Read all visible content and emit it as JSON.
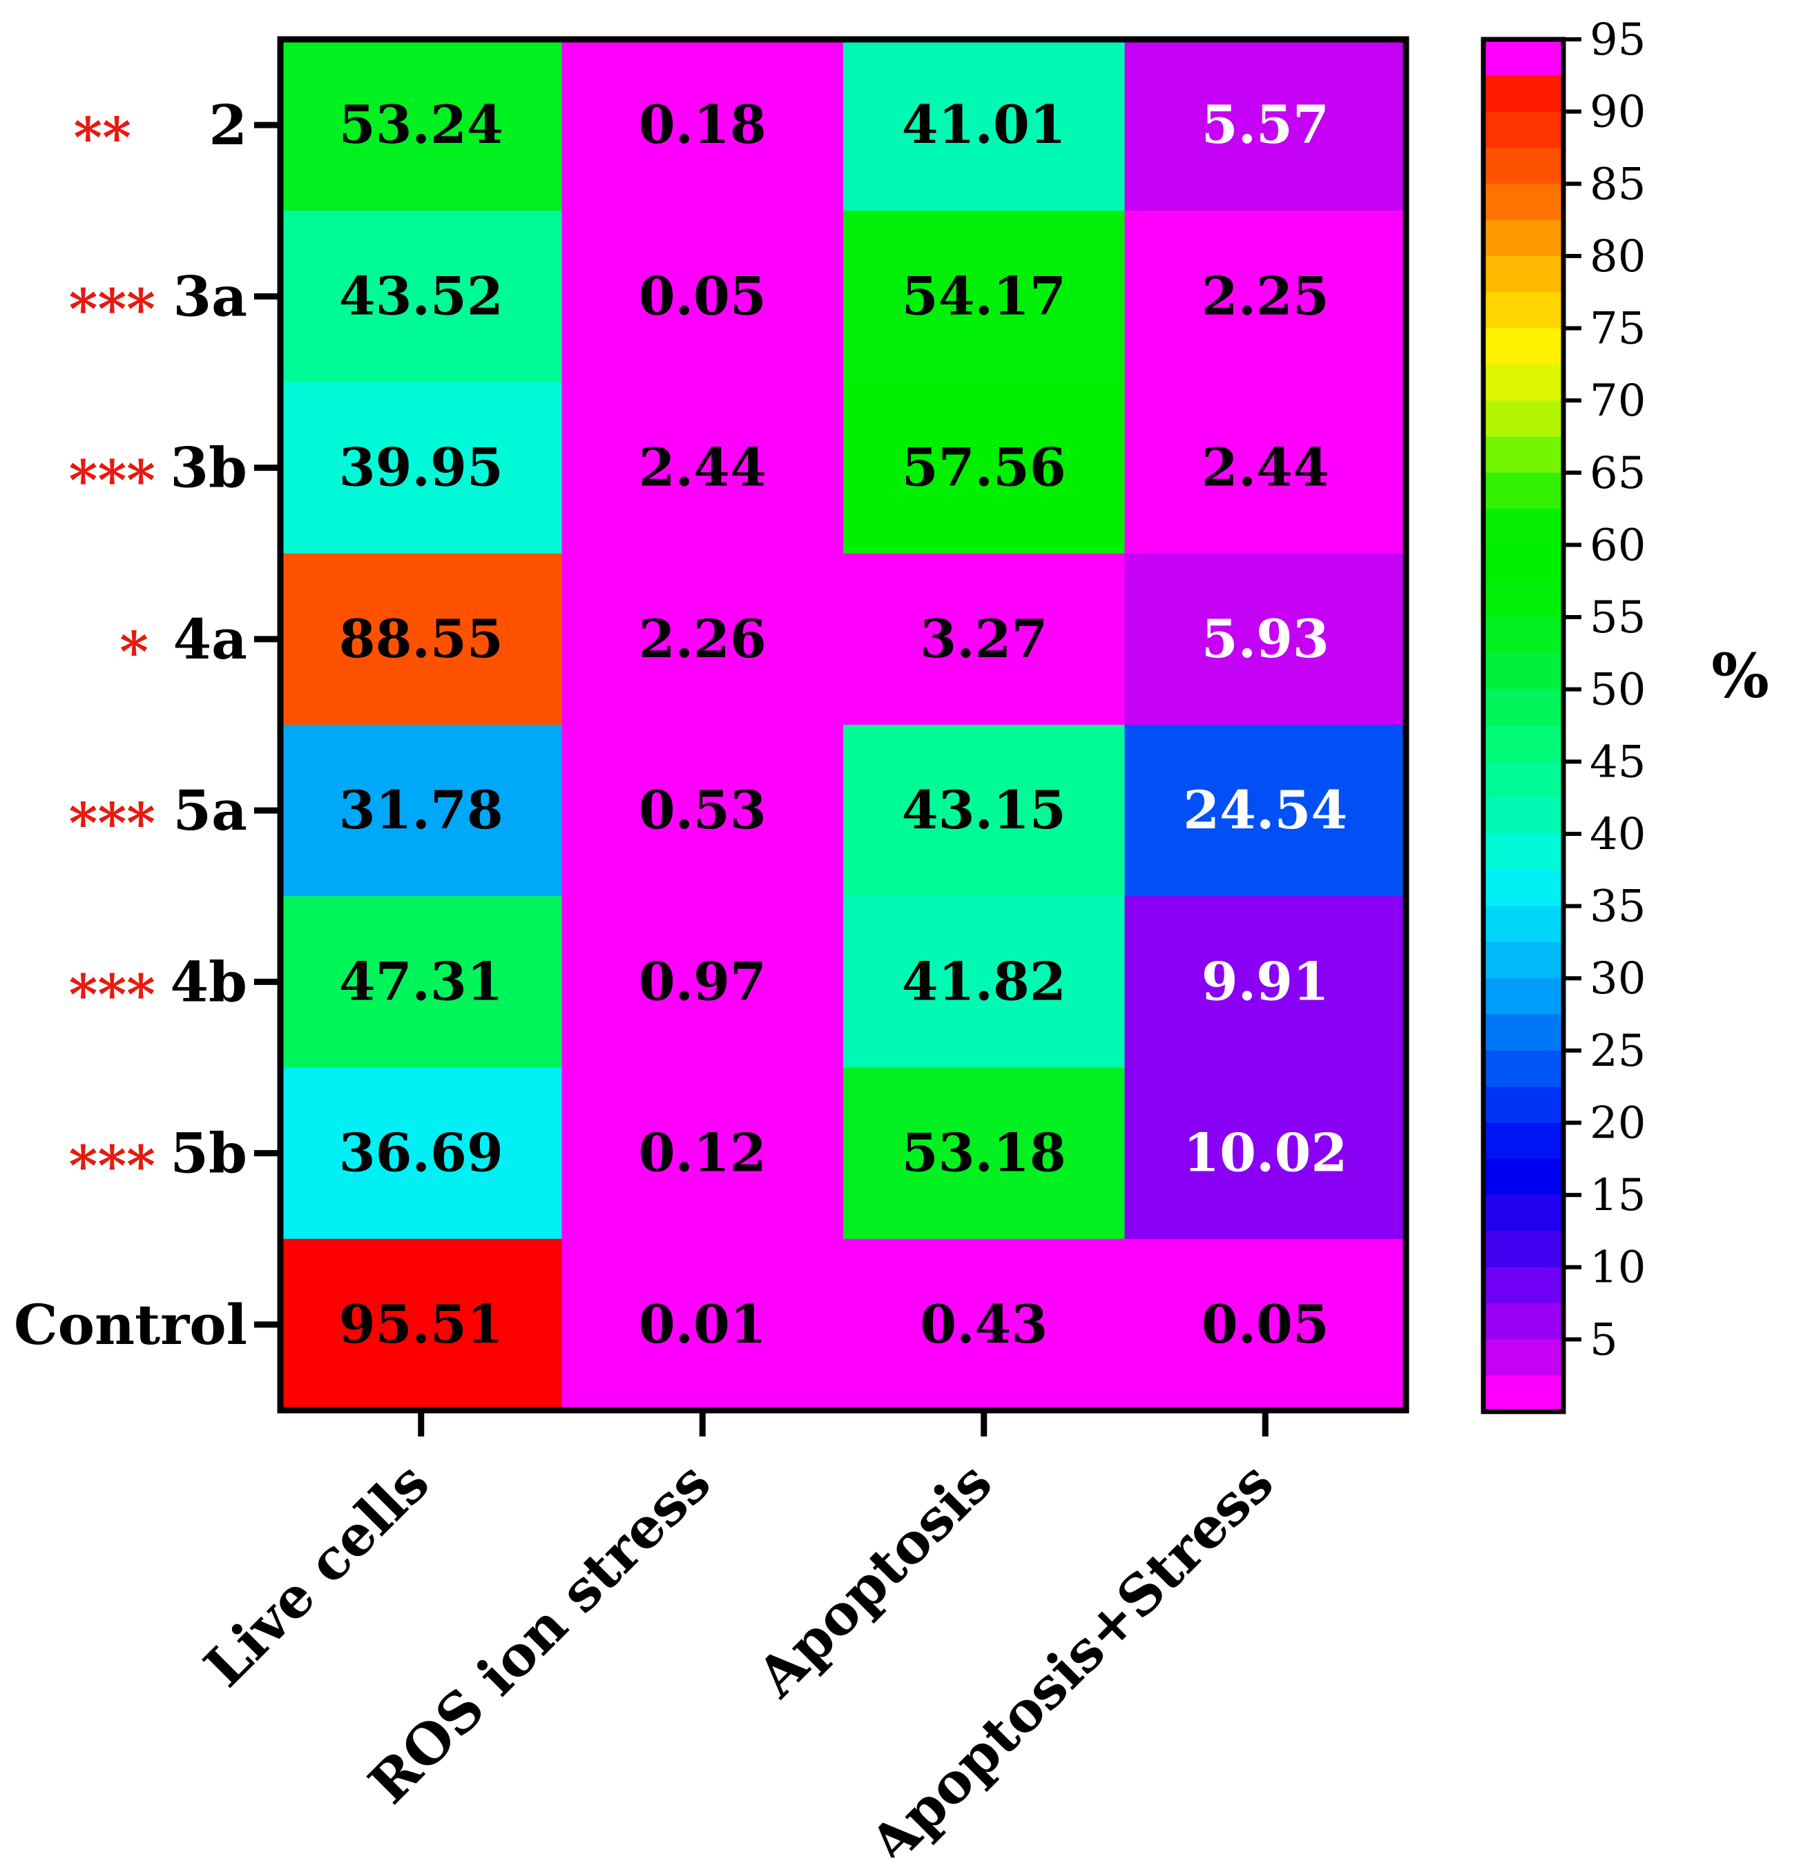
{
  "chart_data": {
    "type": "heatmap",
    "title": "",
    "rows": [
      "2",
      "3a",
      "3b",
      "4a",
      "5a",
      "4b",
      "5b",
      "Control"
    ],
    "row_significance": [
      "**",
      "***",
      "***",
      "*",
      "***",
      "***",
      "***",
      ""
    ],
    "columns": [
      "Live cells",
      "ROS ion stress",
      "Apoptosis",
      "Apoptosis+Stress"
    ],
    "values": [
      [
        53.24,
        0.18,
        41.01,
        5.57
      ],
      [
        43.52,
        0.05,
        54.17,
        2.25
      ],
      [
        39.95,
        2.44,
        57.56,
        2.44
      ],
      [
        88.55,
        2.26,
        3.27,
        5.93
      ],
      [
        31.78,
        0.53,
        43.15,
        24.54
      ],
      [
        47.31,
        0.97,
        41.82,
        9.91
      ],
      [
        36.69,
        0.12,
        53.18,
        10.02
      ],
      [
        95.51,
        0.01,
        0.43,
        0.05
      ]
    ],
    "value_labels": [
      [
        "53.24",
        "0.18",
        "41.01",
        "5.57"
      ],
      [
        "43.52",
        "0.05",
        "54.17",
        "2.25"
      ],
      [
        "39.95",
        "2.44",
        "57.56",
        "2.44"
      ],
      [
        "88.55",
        "2.26",
        "3.27",
        "5.93"
      ],
      [
        "31.78",
        "0.53",
        "43.15",
        "24.54"
      ],
      [
        "47.31",
        "0.97",
        "41.82",
        "9.91"
      ],
      [
        "36.69",
        "0.12",
        "53.18",
        "10.02"
      ],
      [
        "95.51",
        "0.01",
        "0.43",
        "0.05"
      ]
    ],
    "colorbar": {
      "title": "%",
      "range": [
        0,
        95
      ],
      "tick_values": [
        95,
        90,
        85,
        80,
        75,
        70,
        65,
        60,
        55,
        50,
        45,
        40,
        35,
        30,
        25,
        20,
        15,
        10,
        5
      ],
      "tick_labels": [
        "95",
        "90",
        "85",
        "80",
        "75",
        "70",
        "65",
        "60",
        "55",
        "50",
        "45",
        "40",
        "35",
        "30",
        "25",
        "20",
        "15",
        "10",
        "5"
      ],
      "bands": [
        {
          "from": 95,
          "to": 92.5,
          "color": "#ff00ff"
        },
        {
          "from": 92.5,
          "to": 90,
          "color": "#ff1a00"
        },
        {
          "from": 90,
          "to": 87.5,
          "color": "#ff3300"
        },
        {
          "from": 87.5,
          "to": 85,
          "color": "#ff5200"
        },
        {
          "from": 85,
          "to": 82.5,
          "color": "#ff7300"
        },
        {
          "from": 82.5,
          "to": 80,
          "color": "#ff9900"
        },
        {
          "from": 80,
          "to": 77.5,
          "color": "#ffb800"
        },
        {
          "from": 77.5,
          "to": 75,
          "color": "#ffd600"
        },
        {
          "from": 75,
          "to": 72.5,
          "color": "#fff200"
        },
        {
          "from": 72.5,
          "to": 70,
          "color": "#e0f500"
        },
        {
          "from": 70,
          "to": 67.5,
          "color": "#b3f500"
        },
        {
          "from": 67.5,
          "to": 65,
          "color": "#73f500"
        },
        {
          "from": 65,
          "to": 62.5,
          "color": "#33f000"
        },
        {
          "from": 62.5,
          "to": 60,
          "color": "#05f000"
        },
        {
          "from": 60,
          "to": 57.5,
          "color": "#00f000"
        },
        {
          "from": 57.5,
          "to": 55,
          "color": "#00f00a"
        },
        {
          "from": 55,
          "to": 52.5,
          "color": "#00f020"
        },
        {
          "from": 52.5,
          "to": 50,
          "color": "#00f03c"
        },
        {
          "from": 50,
          "to": 47.5,
          "color": "#00f55a"
        },
        {
          "from": 47.5,
          "to": 45,
          "color": "#00fa78"
        },
        {
          "from": 45,
          "to": 42.5,
          "color": "#00fa96"
        },
        {
          "from": 42.5,
          "to": 40,
          "color": "#00fab4"
        },
        {
          "from": 40,
          "to": 37.5,
          "color": "#00fad8"
        },
        {
          "from": 37.5,
          "to": 35,
          "color": "#00f0f5"
        },
        {
          "from": 35,
          "to": 32.5,
          "color": "#00d6f8"
        },
        {
          "from": 32.5,
          "to": 30,
          "color": "#00b9fa"
        },
        {
          "from": 30,
          "to": 27.5,
          "color": "#009cfa"
        },
        {
          "from": 27.5,
          "to": 25,
          "color": "#0078f5"
        },
        {
          "from": 25,
          "to": 22.5,
          "color": "#0055f5"
        },
        {
          "from": 22.5,
          "to": 20,
          "color": "#0033f5"
        },
        {
          "from": 20,
          "to": 17.5,
          "color": "#0014f5"
        },
        {
          "from": 17.5,
          "to": 15,
          "color": "#0000f0"
        },
        {
          "from": 15,
          "to": 12.5,
          "color": "#2200f0"
        },
        {
          "from": 12.5,
          "to": 10,
          "color": "#4400f0"
        },
        {
          "from": 10,
          "to": 7.5,
          "color": "#7000f5"
        },
        {
          "from": 7.5,
          "to": 5,
          "color": "#9a00f5"
        },
        {
          "from": 5,
          "to": 2.5,
          "color": "#c400f5"
        },
        {
          "from": 2.5,
          "to": 0,
          "color": "#ff00ff"
        }
      ]
    },
    "cell_colors": [
      [
        "#00f020",
        "#ff00ff",
        "#00fab4",
        "#c400f5"
      ],
      [
        "#00fa96",
        "#ff00ff",
        "#00f00a",
        "#ff00ff"
      ],
      [
        "#00fad8",
        "#ff00ff",
        "#00f000",
        "#ff00ff"
      ],
      [
        "#ff5200",
        "#ff00ff",
        "#ff00ff",
        "#c400f5"
      ],
      [
        "#00a8fa",
        "#ff00ff",
        "#00fa96",
        "#0050f5"
      ],
      [
        "#00f55a",
        "#ff00ff",
        "#00fab4",
        "#8a00f5"
      ],
      [
        "#00f0f5",
        "#ff00ff",
        "#00f020",
        "#8a00f5"
      ],
      [
        "#ff0000",
        "#ff00ff",
        "#ff00ff",
        "#ff00ff"
      ]
    ],
    "text_colors": [
      [
        "#000000",
        "#000000",
        "#000000",
        "#ffffff"
      ],
      [
        "#000000",
        "#000000",
        "#000000",
        "#000000"
      ],
      [
        "#000000",
        "#000000",
        "#000000",
        "#000000"
      ],
      [
        "#000000",
        "#000000",
        "#000000",
        "#ffffff"
      ],
      [
        "#000000",
        "#000000",
        "#000000",
        "#ffffff"
      ],
      [
        "#000000",
        "#000000",
        "#000000",
        "#ffffff"
      ],
      [
        "#000000",
        "#000000",
        "#000000",
        "#ffffff"
      ],
      [
        "#000000",
        "#000000",
        "#000000",
        "#000000"
      ]
    ],
    "significance_color": "#e8190f",
    "xlabel": "",
    "ylabel": ""
  }
}
